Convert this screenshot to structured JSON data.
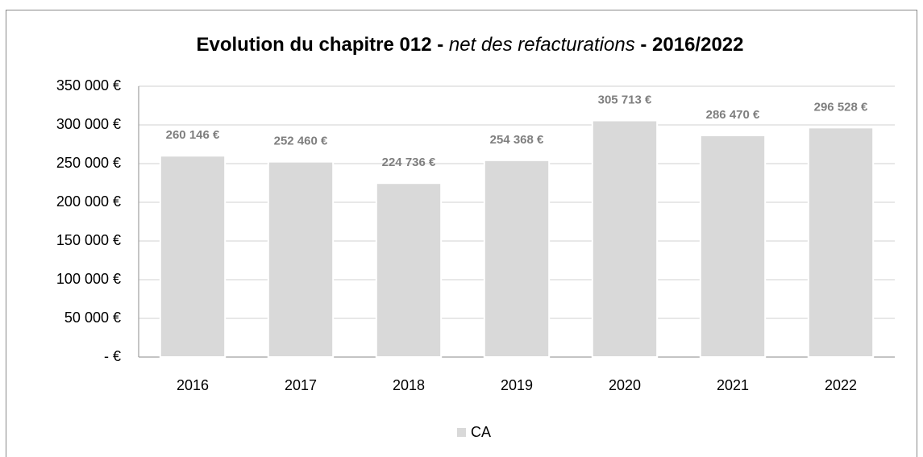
{
  "chart_data": {
    "type": "bar",
    "title": [
      "Evolution du chapitre 012 - ",
      "net des refacturations",
      " - 2016/2022"
    ],
    "categories": [
      "2016",
      "2017",
      "2018",
      "2019",
      "2020",
      "2021",
      "2022"
    ],
    "series": [
      {
        "name": "CA",
        "color": "#d9d9d9",
        "values": [
          260146,
          252460,
          224736,
          254368,
          305713,
          286470,
          296528
        ],
        "value_labels": [
          "260 146 €",
          "252 460 €",
          "224 736 €",
          "254 368 €",
          "305 713 €",
          "286 470 €",
          "296 528 €"
        ]
      }
    ],
    "ylim": [
      0,
      350000
    ],
    "yticks": [
      {
        "value": 0,
        "label": "-  €"
      },
      {
        "value": 50000,
        "label": "50 000 €"
      },
      {
        "value": 100000,
        "label": "100 000 €"
      },
      {
        "value": 150000,
        "label": "150 000 €"
      },
      {
        "value": 200000,
        "label": "200 000 €"
      },
      {
        "value": 250000,
        "label": "250 000 €"
      },
      {
        "value": 300000,
        "label": "300 000 €"
      },
      {
        "value": 350000,
        "label": "350 000 €"
      }
    ],
    "grid": true,
    "legend": "bottom"
  }
}
